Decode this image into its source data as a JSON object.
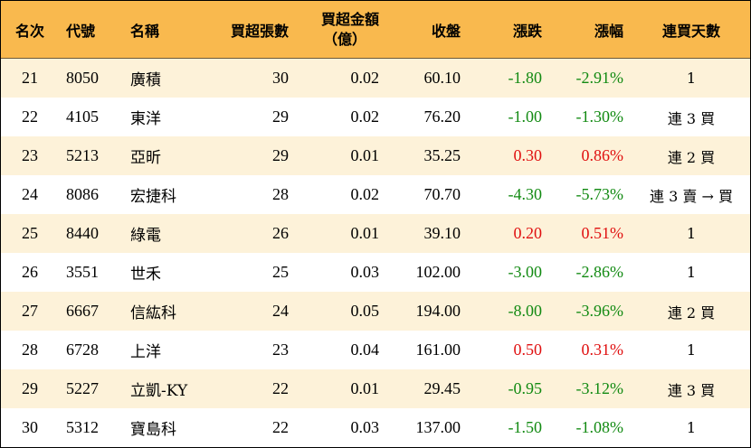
{
  "header": {
    "rank": "名次",
    "code": "代號",
    "name": "名稱",
    "lots": "買超張數",
    "amount_line1": "買超金額",
    "amount_line2": "（億）",
    "close": "收盤",
    "change": "漲跌",
    "pct": "漲幅",
    "days": "連買天數"
  },
  "colors": {
    "header_bg": "#f9b94e",
    "odd_row_bg": "#fdf2d9",
    "up": "#e01010",
    "down": "#128a12"
  },
  "rows": [
    {
      "rank": "21",
      "code": "8050",
      "name": "廣積",
      "lots": "30",
      "amount": "0.02",
      "close": "60.10",
      "change": "-1.80",
      "pct": "-2.91%",
      "days": "1",
      "dir": "down"
    },
    {
      "rank": "22",
      "code": "4105",
      "name": "東洋",
      "lots": "29",
      "amount": "0.02",
      "close": "76.20",
      "change": "-1.00",
      "pct": "-1.30%",
      "days": "連 3 買",
      "dir": "down"
    },
    {
      "rank": "23",
      "code": "5213",
      "name": "亞昕",
      "lots": "29",
      "amount": "0.01",
      "close": "35.25",
      "change": "0.30",
      "pct": "0.86%",
      "days": "連 2 買",
      "dir": "up"
    },
    {
      "rank": "24",
      "code": "8086",
      "name": "宏捷科",
      "lots": "28",
      "amount": "0.02",
      "close": "70.70",
      "change": "-4.30",
      "pct": "-5.73%",
      "days": "連 3 賣 → 買",
      "dir": "down"
    },
    {
      "rank": "25",
      "code": "8440",
      "name": "綠電",
      "lots": "26",
      "amount": "0.01",
      "close": "39.10",
      "change": "0.20",
      "pct": "0.51%",
      "days": "1",
      "dir": "up"
    },
    {
      "rank": "26",
      "code": "3551",
      "name": "世禾",
      "lots": "25",
      "amount": "0.03",
      "close": "102.00",
      "change": "-3.00",
      "pct": "-2.86%",
      "days": "1",
      "dir": "down"
    },
    {
      "rank": "27",
      "code": "6667",
      "name": "信紘科",
      "lots": "24",
      "amount": "0.05",
      "close": "194.00",
      "change": "-8.00",
      "pct": "-3.96%",
      "days": "連 2 買",
      "dir": "down"
    },
    {
      "rank": "28",
      "code": "6728",
      "name": "上洋",
      "lots": "23",
      "amount": "0.04",
      "close": "161.00",
      "change": "0.50",
      "pct": "0.31%",
      "days": "1",
      "dir": "up"
    },
    {
      "rank": "29",
      "code": "5227",
      "name": "立凱-KY",
      "lots": "22",
      "amount": "0.01",
      "close": "29.45",
      "change": "-0.95",
      "pct": "-3.12%",
      "days": "連 3 買",
      "dir": "down"
    },
    {
      "rank": "30",
      "code": "5312",
      "name": "寶島科",
      "lots": "22",
      "amount": "0.03",
      "close": "137.00",
      "change": "-1.50",
      "pct": "-1.08%",
      "days": "1",
      "dir": "down"
    }
  ]
}
